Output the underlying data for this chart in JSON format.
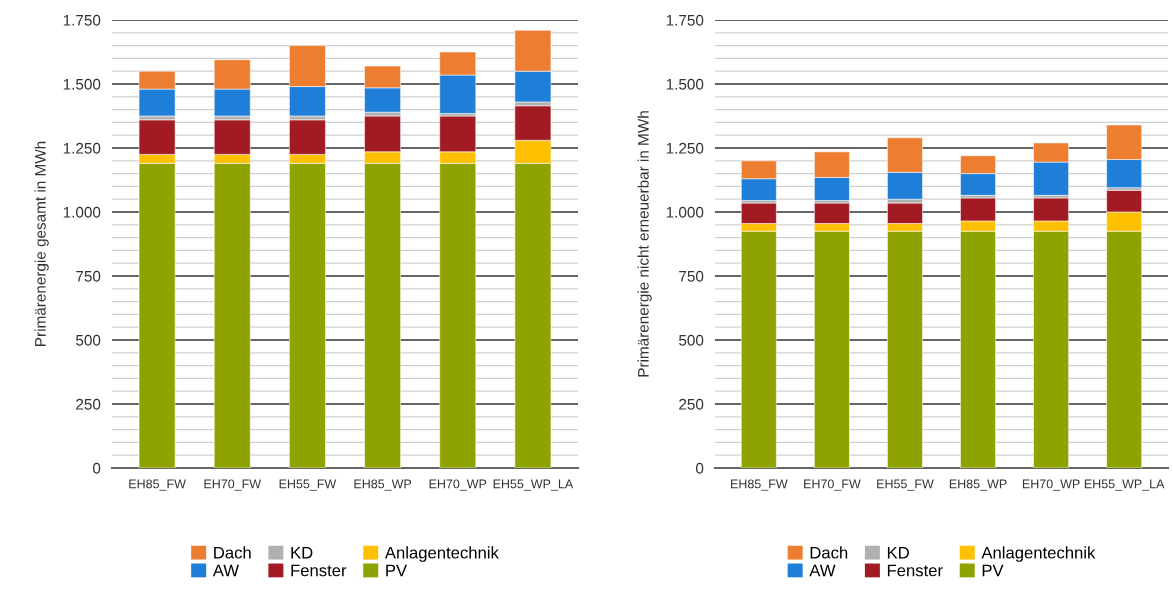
{
  "chart_data": [
    {
      "type": "bar",
      "stacked": true,
      "ylabel": "Primärenergie gesamt in MWh",
      "categories": [
        "EH85_FW",
        "EH70_FW",
        "EH55_FW",
        "EH85_WP",
        "EH70_WP",
        "EH55_WP_LA"
      ],
      "series": [
        {
          "name": "PV",
          "color": "#8fa300",
          "values": [
            1190,
            1190,
            1190,
            1190,
            1190,
            1190
          ]
        },
        {
          "name": "Anlagentechnik",
          "color": "#ffc000",
          "values": [
            35,
            35,
            35,
            45,
            45,
            90
          ]
        },
        {
          "name": "Fenster",
          "color": "#a31b22",
          "values": [
            135,
            135,
            135,
            140,
            140,
            135
          ]
        },
        {
          "name": "KD",
          "color": "#b0b0b0",
          "values": [
            15,
            15,
            15,
            15,
            10,
            15
          ]
        },
        {
          "name": "AW",
          "color": "#1f7fd8",
          "values": [
            105,
            105,
            115,
            95,
            150,
            120
          ]
        },
        {
          "name": "Dach",
          "color": "#ed7d31",
          "values": [
            70,
            115,
            160,
            85,
            90,
            160
          ]
        }
      ],
      "ylim": [
        0,
        1750
      ],
      "yticks": [
        0,
        {
          "value": 50,
          "label": null
        },
        {
          "value": 100,
          "label": null
        },
        {
          "value": 150,
          "label": null
        },
        {
          "value": 200,
          "label": null
        },
        250,
        {
          "value": 300,
          "label": null
        },
        {
          "value": 350,
          "label": null
        },
        {
          "value": 400,
          "label": null
        },
        {
          "value": 450,
          "label": null
        },
        500,
        {
          "value": 550,
          "label": null
        },
        {
          "value": 600,
          "label": null
        },
        {
          "value": 650,
          "label": null
        },
        {
          "value": 700,
          "label": null
        },
        750,
        {
          "value": 800,
          "label": null
        },
        {
          "value": 850,
          "label": null
        },
        {
          "value": 900,
          "label": null
        },
        {
          "value": 950,
          "label": null
        },
        {
          "value": 1000,
          "label": "1.000"
        },
        {
          "value": 1050,
          "label": null
        },
        {
          "value": 1100,
          "label": null
        },
        {
          "value": 1150,
          "label": null
        },
        {
          "value": 1200,
          "label": null
        },
        {
          "value": 1250,
          "label": "1.250"
        },
        {
          "value": 1300,
          "label": null
        },
        {
          "value": 1350,
          "label": null
        },
        {
          "value": 1400,
          "label": null
        },
        {
          "value": 1450,
          "label": null
        },
        {
          "value": 1500,
          "label": "1.500"
        },
        {
          "value": 1550,
          "label": null
        },
        {
          "value": 1600,
          "label": null
        },
        {
          "value": 1650,
          "label": null
        },
        {
          "value": 1700,
          "label": null
        },
        {
          "value": 1750,
          "label": "1.750"
        }
      ],
      "grid": "y",
      "legend": "bottom"
    },
    {
      "type": "bar",
      "stacked": true,
      "ylabel": "Primärenergie nicht erneuerbar in MWh",
      "categories": [
        "EH85_FW",
        "EH70_FW",
        "EH55_FW",
        "EH85_WP",
        "EH70_WP",
        "EH55_WP_LA"
      ],
      "series": [
        {
          "name": "PV",
          "color": "#8fa300",
          "values": [
            925,
            925,
            925,
            925,
            925,
            925
          ]
        },
        {
          "name": "Anlagentechnik",
          "color": "#ffc000",
          "values": [
            30,
            30,
            30,
            40,
            40,
            75
          ]
        },
        {
          "name": "Fenster",
          "color": "#a31b22",
          "values": [
            80,
            80,
            80,
            90,
            90,
            85
          ]
        },
        {
          "name": "KD",
          "color": "#b0b0b0",
          "values": [
            10,
            10,
            15,
            10,
            10,
            10
          ]
        },
        {
          "name": "AW",
          "color": "#1f7fd8",
          "values": [
            85,
            90,
            105,
            85,
            130,
            110
          ]
        },
        {
          "name": "Dach",
          "color": "#ed7d31",
          "values": [
            70,
            100,
            135,
            70,
            75,
            135
          ]
        }
      ],
      "ylim": [
        0,
        1750
      ],
      "yticks": [
        0,
        {
          "value": 50,
          "label": null
        },
        {
          "value": 100,
          "label": null
        },
        {
          "value": 150,
          "label": null
        },
        {
          "value": 200,
          "label": null
        },
        250,
        {
          "value": 300,
          "label": null
        },
        {
          "value": 350,
          "label": null
        },
        {
          "value": 400,
          "label": null
        },
        {
          "value": 450,
          "label": null
        },
        500,
        {
          "value": 550,
          "label": null
        },
        {
          "value": 600,
          "label": null
        },
        {
          "value": 650,
          "label": null
        },
        {
          "value": 700,
          "label": null
        },
        750,
        {
          "value": 800,
          "label": null
        },
        {
          "value": 850,
          "label": null
        },
        {
          "value": 900,
          "label": null
        },
        {
          "value": 950,
          "label": null
        },
        {
          "value": 1000,
          "label": "1.000"
        },
        {
          "value": 1050,
          "label": null
        },
        {
          "value": 1100,
          "label": null
        },
        {
          "value": 1150,
          "label": null
        },
        {
          "value": 1200,
          "label": null
        },
        {
          "value": 1250,
          "label": "1.250"
        },
        {
          "value": 1300,
          "label": null
        },
        {
          "value": 1350,
          "label": null
        },
        {
          "value": 1400,
          "label": null
        },
        {
          "value": 1450,
          "label": null
        },
        {
          "value": 1500,
          "label": "1.500"
        },
        {
          "value": 1550,
          "label": null
        },
        {
          "value": 1600,
          "label": null
        },
        {
          "value": 1650,
          "label": null
        },
        {
          "value": 1700,
          "label": null
        },
        {
          "value": 1750,
          "label": "1.750"
        }
      ],
      "grid": "y",
      "legend": "bottom"
    }
  ]
}
